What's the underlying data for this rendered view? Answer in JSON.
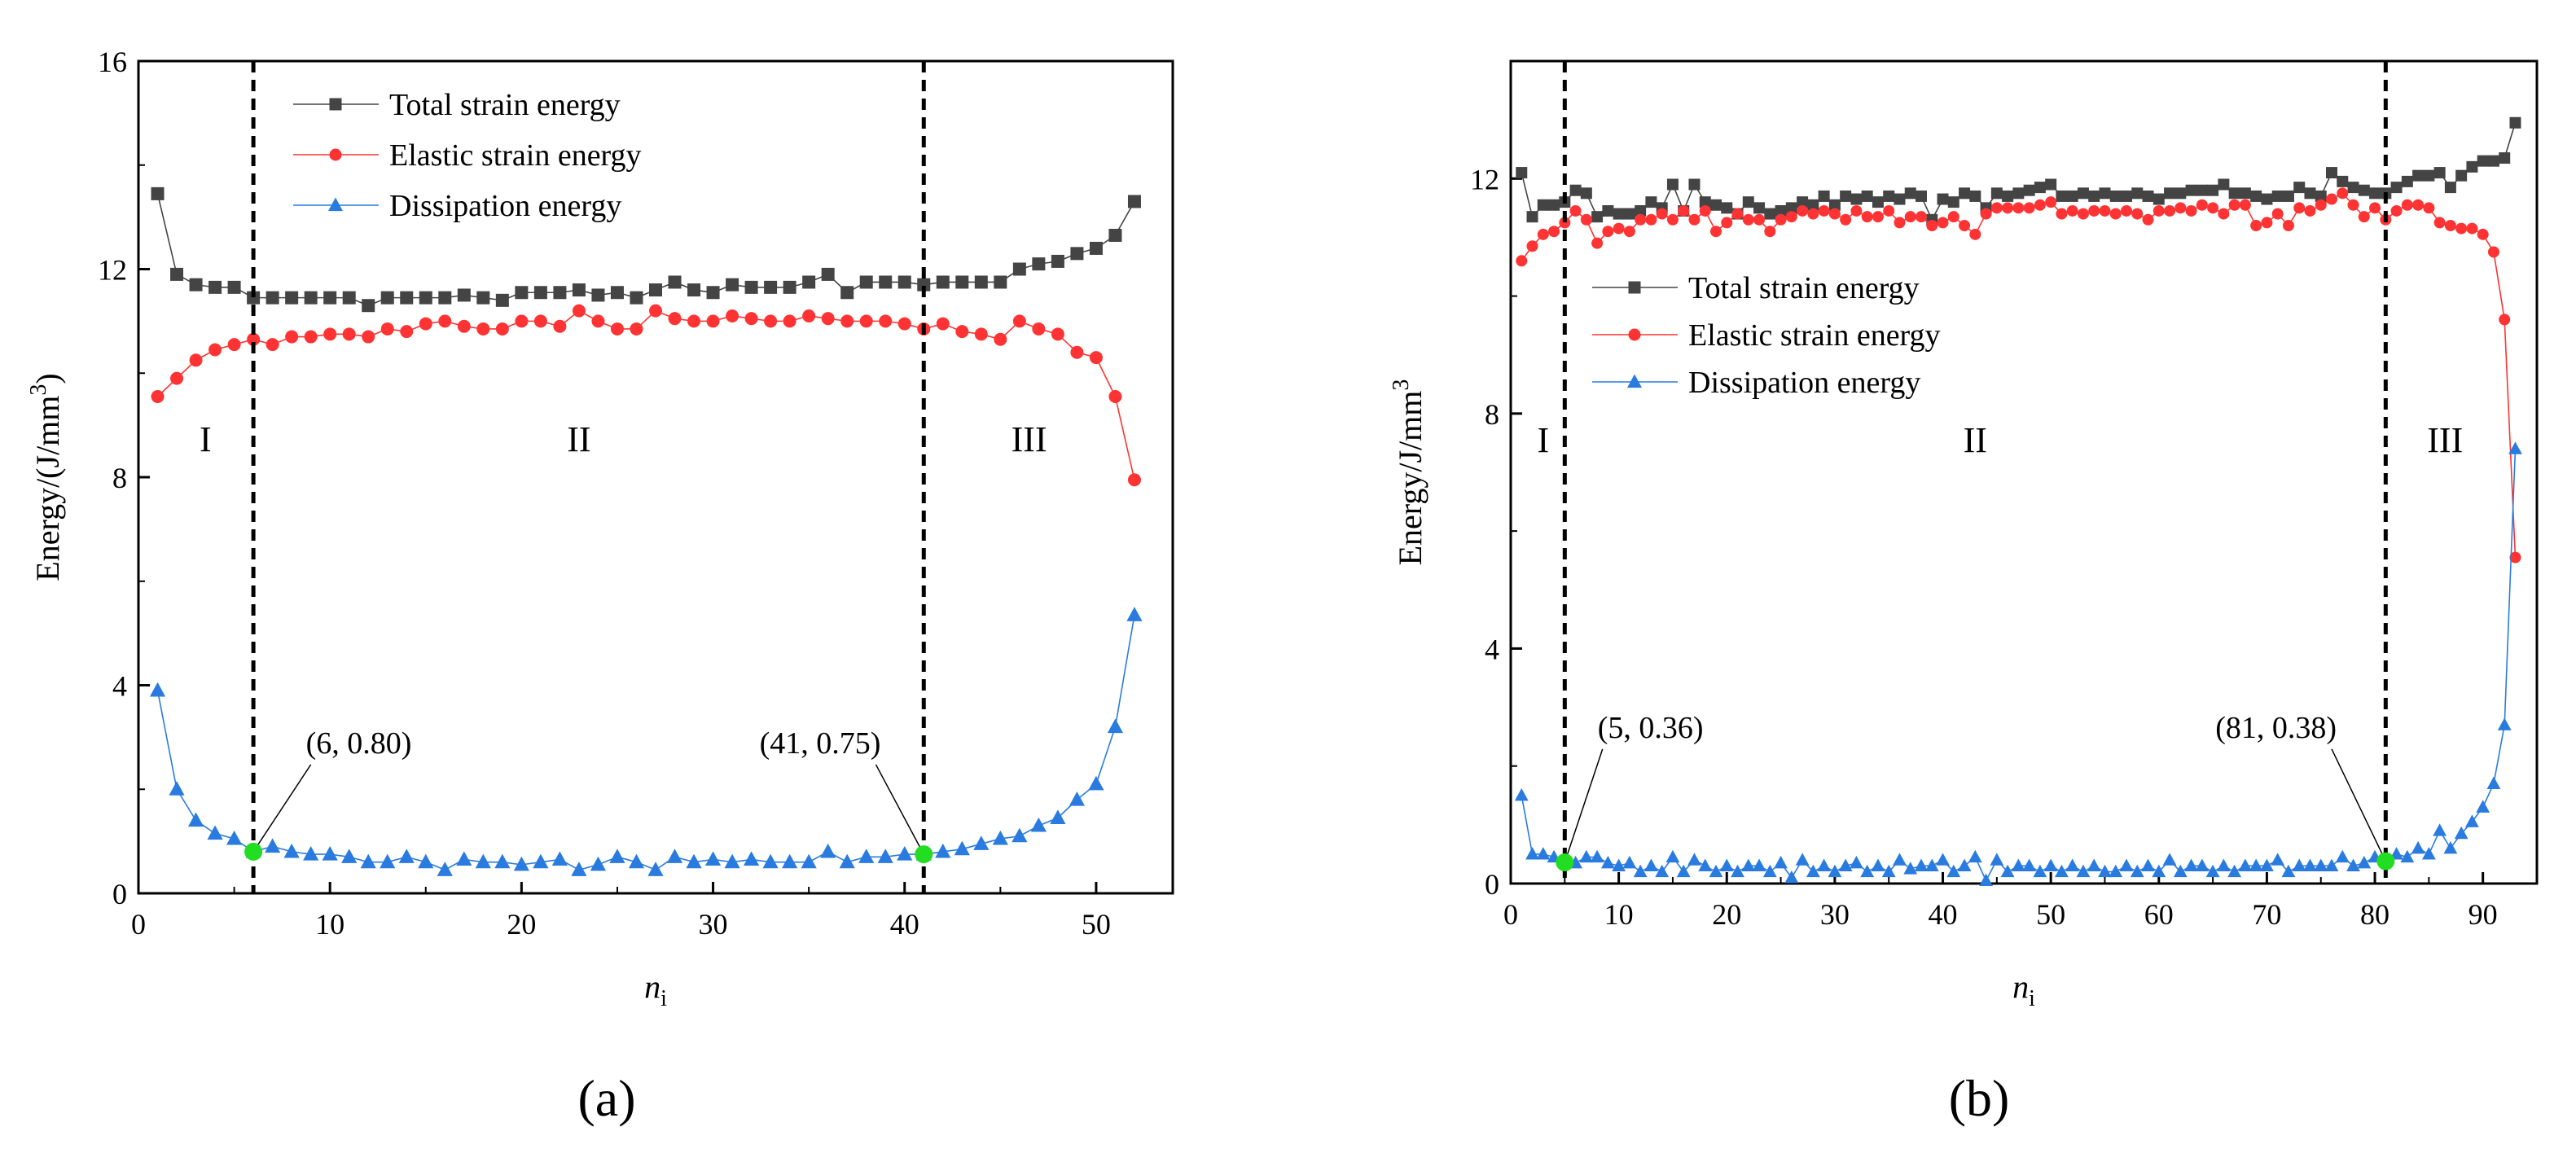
{
  "chart_data": [
    {
      "type": "line",
      "panel_label": "(a)",
      "panel_letter": "a",
      "xlabel": "n",
      "xlabel_sub": "i",
      "ylabel": "Energy/(J/mm",
      "ylabel_sup": "3",
      "ylabel_end": ")",
      "xlim": [
        0,
        54
      ],
      "ylim": [
        0,
        16
      ],
      "xticks": [
        0,
        10,
        20,
        30,
        40,
        50
      ],
      "yticks": [
        0,
        4,
        8,
        12,
        16
      ],
      "legend_position": "top-left",
      "dividers": [
        6,
        41
      ],
      "regions": [
        {
          "label": "I",
          "x": 3.5,
          "y": 8.5
        },
        {
          "label": "II",
          "x": 23,
          "y": 8.5
        },
        {
          "label": "III",
          "x": 46.5,
          "y": 8.5
        }
      ],
      "annotations": [
        {
          "text": "(6, 0.80)",
          "point": [
            6,
            0.8
          ],
          "label_at": [
            9,
            2.6
          ],
          "anchor": "start"
        },
        {
          "text": "(41, 0.75)",
          "point": [
            41,
            0.75
          ],
          "label_at": [
            38.5,
            2.6
          ],
          "anchor": "end"
        }
      ],
      "series": [
        {
          "name": "Total strain energy",
          "color": "#444444",
          "marker": "square",
          "x": [
            1,
            2,
            3,
            4,
            5,
            6,
            7,
            8,
            9,
            10,
            11,
            12,
            13,
            14,
            15,
            16,
            17,
            18,
            19,
            20,
            21,
            22,
            23,
            24,
            25,
            26,
            27,
            28,
            29,
            30,
            31,
            32,
            33,
            34,
            35,
            36,
            37,
            38,
            39,
            40,
            41,
            42,
            43,
            44,
            45,
            46,
            47,
            48,
            49,
            50,
            51,
            52
          ],
          "values": [
            13.45,
            11.9,
            11.7,
            11.65,
            11.65,
            11.45,
            11.45,
            11.45,
            11.45,
            11.45,
            11.45,
            11.3,
            11.45,
            11.45,
            11.45,
            11.45,
            11.5,
            11.45,
            11.4,
            11.55,
            11.55,
            11.55,
            11.6,
            11.5,
            11.55,
            11.45,
            11.6,
            11.75,
            11.6,
            11.55,
            11.7,
            11.65,
            11.65,
            11.65,
            11.75,
            11.9,
            11.55,
            11.75,
            11.75,
            11.75,
            11.7,
            11.75,
            11.75,
            11.75,
            11.75,
            12.0,
            12.1,
            12.15,
            12.3,
            12.4,
            12.65,
            13.3
          ]
        },
        {
          "name": "Elastic strain energy",
          "color": "#ff3333",
          "marker": "circle",
          "x": [
            1,
            2,
            3,
            4,
            5,
            6,
            7,
            8,
            9,
            10,
            11,
            12,
            13,
            14,
            15,
            16,
            17,
            18,
            19,
            20,
            21,
            22,
            23,
            24,
            25,
            26,
            27,
            28,
            29,
            30,
            31,
            32,
            33,
            34,
            35,
            36,
            37,
            38,
            39,
            40,
            41,
            42,
            43,
            44,
            45,
            46,
            47,
            48,
            49,
            50,
            51,
            52
          ],
          "values": [
            9.55,
            9.9,
            10.25,
            10.45,
            10.55,
            10.65,
            10.55,
            10.7,
            10.7,
            10.75,
            10.75,
            10.7,
            10.85,
            10.8,
            10.95,
            11.0,
            10.9,
            10.85,
            10.85,
            11.0,
            11.0,
            10.9,
            11.2,
            11.0,
            10.85,
            10.85,
            11.2,
            11.05,
            11.0,
            11.0,
            11.1,
            11.05,
            11.0,
            11.0,
            11.1,
            11.05,
            11.0,
            11.0,
            11.0,
            10.95,
            10.85,
            10.95,
            10.8,
            10.75,
            10.65,
            11.0,
            10.85,
            10.75,
            10.4,
            10.3,
            9.55,
            7.95
          ]
        },
        {
          "name": "Dissipation energy",
          "color": "#2a7be0",
          "marker": "triangle",
          "x": [
            1,
            2,
            3,
            4,
            5,
            6,
            7,
            8,
            9,
            10,
            11,
            12,
            13,
            14,
            15,
            16,
            17,
            18,
            19,
            20,
            21,
            22,
            23,
            24,
            25,
            26,
            27,
            28,
            29,
            30,
            31,
            32,
            33,
            34,
            35,
            36,
            37,
            38,
            39,
            40,
            41,
            42,
            43,
            44,
            45,
            46,
            47,
            48,
            49,
            50,
            51,
            52
          ],
          "values": [
            3.9,
            2.0,
            1.4,
            1.15,
            1.05,
            0.8,
            0.9,
            0.8,
            0.75,
            0.75,
            0.7,
            0.6,
            0.6,
            0.7,
            0.6,
            0.45,
            0.65,
            0.6,
            0.6,
            0.55,
            0.6,
            0.65,
            0.45,
            0.55,
            0.7,
            0.6,
            0.45,
            0.7,
            0.6,
            0.65,
            0.6,
            0.65,
            0.6,
            0.6,
            0.6,
            0.8,
            0.6,
            0.7,
            0.7,
            0.75,
            0.75,
            0.8,
            0.85,
            0.95,
            1.05,
            1.1,
            1.3,
            1.45,
            1.8,
            2.1,
            3.2,
            5.35
          ]
        }
      ]
    },
    {
      "type": "line",
      "panel_label": "(b)",
      "panel_letter": "b",
      "xlabel": "n",
      "xlabel_sub": "i",
      "ylabel": "Energy/J/mm",
      "ylabel_sup": "3",
      "ylabel_end": "",
      "xlim": [
        0,
        95
      ],
      "ylim": [
        0,
        14
      ],
      "xticks": [
        0,
        10,
        20,
        30,
        40,
        50,
        60,
        70,
        80,
        90
      ],
      "yticks": [
        0,
        4,
        8,
        12
      ],
      "legend_position": "middle-left",
      "dividers": [
        5,
        81
      ],
      "regions": [
        {
          "label": "I",
          "x": 3,
          "y": 7.35
        },
        {
          "label": "II",
          "x": 43,
          "y": 7.35
        },
        {
          "label": "III",
          "x": 86.5,
          "y": 7.35
        }
      ],
      "annotations": [
        {
          "text": "(5, 0.36)",
          "point": [
            5,
            0.36
          ],
          "label_at": [
            8.5,
            2.4
          ],
          "anchor": "start"
        },
        {
          "text": "(81, 0.38)",
          "point": [
            81,
            0.38
          ],
          "label_at": [
            76,
            2.4
          ],
          "anchor": "end"
        }
      ],
      "series": [
        {
          "name": "Total strain energy",
          "color": "#444444",
          "marker": "square",
          "x": [
            1,
            2,
            3,
            4,
            5,
            6,
            7,
            8,
            9,
            10,
            11,
            12,
            13,
            14,
            15,
            16,
            17,
            18,
            19,
            20,
            21,
            22,
            23,
            24,
            25,
            26,
            27,
            28,
            29,
            30,
            31,
            32,
            33,
            34,
            35,
            36,
            37,
            38,
            39,
            40,
            41,
            42,
            43,
            44,
            45,
            46,
            47,
            48,
            49,
            50,
            51,
            52,
            53,
            54,
            55,
            56,
            57,
            58,
            59,
            60,
            61,
            62,
            63,
            64,
            65,
            66,
            67,
            68,
            69,
            70,
            71,
            72,
            73,
            74,
            75,
            76,
            77,
            78,
            79,
            80,
            81,
            82,
            83,
            84,
            85,
            86,
            87,
            88,
            89,
            90,
            91,
            92,
            93
          ],
          "values": [
            12.1,
            11.35,
            11.55,
            11.55,
            11.6,
            11.8,
            11.75,
            11.35,
            11.45,
            11.4,
            11.4,
            11.45,
            11.6,
            11.5,
            11.9,
            11.45,
            11.9,
            11.6,
            11.55,
            11.5,
            11.4,
            11.6,
            11.5,
            11.4,
            11.45,
            11.5,
            11.6,
            11.55,
            11.7,
            11.55,
            11.7,
            11.65,
            11.7,
            11.6,
            11.7,
            11.65,
            11.75,
            11.7,
            11.3,
            11.65,
            11.6,
            11.75,
            11.7,
            11.5,
            11.75,
            11.7,
            11.75,
            11.8,
            11.85,
            11.9,
            11.7,
            11.7,
            11.75,
            11.7,
            11.75,
            11.7,
            11.7,
            11.75,
            11.7,
            11.65,
            11.75,
            11.75,
            11.8,
            11.8,
            11.8,
            11.9,
            11.75,
            11.75,
            11.7,
            11.65,
            11.7,
            11.7,
            11.85,
            11.75,
            11.7,
            12.1,
            11.95,
            11.85,
            11.8,
            11.75,
            11.75,
            11.85,
            11.95,
            12.05,
            12.05,
            12.1,
            11.85,
            12.05,
            12.2,
            12.3,
            12.3,
            12.35,
            12.95
          ]
        },
        {
          "name": "Elastic strain energy",
          "color": "#ff3333",
          "marker": "circle",
          "x": [
            1,
            2,
            3,
            4,
            5,
            6,
            7,
            8,
            9,
            10,
            11,
            12,
            13,
            14,
            15,
            16,
            17,
            18,
            19,
            20,
            21,
            22,
            23,
            24,
            25,
            26,
            27,
            28,
            29,
            30,
            31,
            32,
            33,
            34,
            35,
            36,
            37,
            38,
            39,
            40,
            41,
            42,
            43,
            44,
            45,
            46,
            47,
            48,
            49,
            50,
            51,
            52,
            53,
            54,
            55,
            56,
            57,
            58,
            59,
            60,
            61,
            62,
            63,
            64,
            65,
            66,
            67,
            68,
            69,
            70,
            71,
            72,
            73,
            74,
            75,
            76,
            77,
            78,
            79,
            80,
            81,
            82,
            83,
            84,
            85,
            86,
            87,
            88,
            89,
            90,
            91,
            92,
            93
          ],
          "values": [
            10.6,
            10.85,
            11.05,
            11.1,
            11.25,
            11.45,
            11.3,
            10.9,
            11.1,
            11.15,
            11.1,
            11.3,
            11.3,
            11.4,
            11.3,
            11.45,
            11.3,
            11.45,
            11.1,
            11.25,
            11.4,
            11.3,
            11.3,
            11.1,
            11.3,
            11.35,
            11.45,
            11.4,
            11.45,
            11.4,
            11.3,
            11.45,
            11.35,
            11.35,
            11.45,
            11.25,
            11.35,
            11.35,
            11.2,
            11.25,
            11.35,
            11.2,
            11.05,
            11.4,
            11.5,
            11.5,
            11.5,
            11.5,
            11.55,
            11.6,
            11.4,
            11.45,
            11.4,
            11.45,
            11.45,
            11.4,
            11.45,
            11.4,
            11.3,
            11.45,
            11.45,
            11.5,
            11.45,
            11.55,
            11.5,
            11.4,
            11.55,
            11.55,
            11.2,
            11.25,
            11.4,
            11.2,
            11.5,
            11.45,
            11.55,
            11.65,
            11.75,
            11.55,
            11.35,
            11.5,
            11.3,
            11.45,
            11.55,
            11.55,
            11.5,
            11.25,
            11.2,
            11.15,
            11.15,
            11.05,
            10.75,
            9.6,
            5.55
          ]
        },
        {
          "name": "Dissipation energy",
          "color": "#2a7be0",
          "marker": "triangle",
          "x": [
            1,
            2,
            3,
            4,
            5,
            6,
            7,
            8,
            9,
            10,
            11,
            12,
            13,
            14,
            15,
            16,
            17,
            18,
            19,
            20,
            21,
            22,
            23,
            24,
            25,
            26,
            27,
            28,
            29,
            30,
            31,
            32,
            33,
            34,
            35,
            36,
            37,
            38,
            39,
            40,
            41,
            42,
            43,
            44,
            45,
            46,
            47,
            48,
            49,
            50,
            51,
            52,
            53,
            54,
            55,
            56,
            57,
            58,
            59,
            60,
            61,
            62,
            63,
            64,
            65,
            66,
            67,
            68,
            69,
            70,
            71,
            72,
            73,
            74,
            75,
            76,
            77,
            78,
            79,
            80,
            81,
            82,
            83,
            84,
            85,
            86,
            87,
            88,
            89,
            90,
            91,
            92,
            93
          ],
          "values": [
            1.5,
            0.5,
            0.5,
            0.45,
            0.36,
            0.35,
            0.45,
            0.45,
            0.35,
            0.3,
            0.35,
            0.2,
            0.3,
            0.2,
            0.45,
            0.2,
            0.4,
            0.3,
            0.2,
            0.3,
            0.2,
            0.3,
            0.3,
            0.2,
            0.35,
            0.1,
            0.4,
            0.2,
            0.3,
            0.2,
            0.3,
            0.35,
            0.2,
            0.3,
            0.2,
            0.4,
            0.25,
            0.3,
            0.3,
            0.4,
            0.2,
            0.3,
            0.45,
            0.05,
            0.4,
            0.2,
            0.3,
            0.3,
            0.2,
            0.3,
            0.2,
            0.3,
            0.2,
            0.3,
            0.2,
            0.2,
            0.3,
            0.2,
            0.3,
            0.2,
            0.4,
            0.2,
            0.3,
            0.3,
            0.2,
            0.3,
            0.2,
            0.3,
            0.3,
            0.3,
            0.4,
            0.2,
            0.3,
            0.3,
            0.3,
            0.3,
            0.45,
            0.3,
            0.35,
            0.45,
            0.38,
            0.5,
            0.45,
            0.6,
            0.5,
            0.9,
            0.6,
            0.85,
            1.05,
            1.3,
            1.7,
            2.7,
            7.4
          ]
        }
      ]
    }
  ]
}
